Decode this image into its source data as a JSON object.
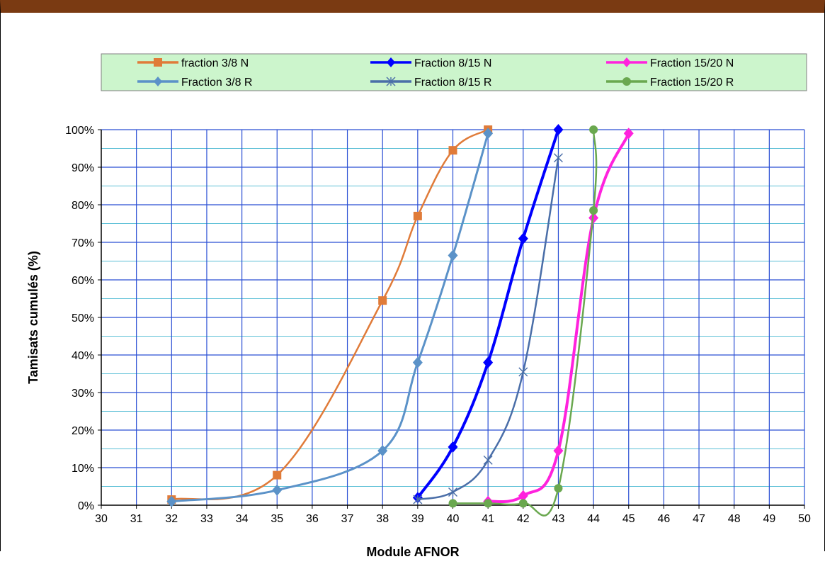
{
  "chart_data": {
    "type": "line",
    "title": "",
    "xlabel": "Module AFNOR",
    "ylabel": "Tamisats cumulés (%)",
    "xlim": [
      30,
      50
    ],
    "ylim": [
      0,
      100
    ],
    "x_ticks": [
      "30",
      "31",
      "32",
      "33",
      "34",
      "35",
      "36",
      "37",
      "38",
      "39",
      "40",
      "41",
      "42",
      "43",
      "44",
      "45",
      "46",
      "47",
      "48",
      "49",
      "50"
    ],
    "y_ticks": [
      "0%",
      "10%",
      "20%",
      "30%",
      "40%",
      "50%",
      "60%",
      "70%",
      "80%",
      "90%",
      "100%"
    ],
    "grid": true,
    "legend_position": "top",
    "series": [
      {
        "name": "fraction 3/8 N",
        "color": "#e07b39",
        "marker": "square",
        "x": [
          32,
          35,
          38,
          39,
          40,
          41
        ],
        "y": [
          1.5,
          8,
          54.5,
          77,
          94.5,
          100
        ]
      },
      {
        "name": "Fraction 3/8 R",
        "color": "#5b92c8",
        "marker": "diamond",
        "x": [
          32,
          35,
          38,
          39,
          40,
          41
        ],
        "y": [
          1,
          4,
          14.5,
          38,
          66.5,
          99
        ]
      },
      {
        "name": "Fraction 8/15 N",
        "color": "#0000ff",
        "marker": "diamond",
        "x": [
          39,
          40,
          41,
          42,
          43
        ],
        "y": [
          2,
          15.5,
          38,
          71,
          100
        ]
      },
      {
        "name": "Fraction 8/15 R",
        "color": "#4a6ea8",
        "marker": "star",
        "x": [
          39,
          40,
          41,
          42,
          43
        ],
        "y": [
          1.5,
          3.5,
          12,
          35.5,
          92.5
        ]
      },
      {
        "name": "Fraction 15/20 N",
        "color": "#ff22dd",
        "marker": "diamond",
        "x": [
          41,
          42,
          43,
          44,
          45
        ],
        "y": [
          1,
          2.5,
          14.5,
          76.5,
          99
        ]
      },
      {
        "name": "Fraction 15/20 R",
        "color": "#6aa84f",
        "marker": "circle",
        "x": [
          40,
          41,
          42,
          43,
          44,
          44
        ],
        "y": [
          0.5,
          0.5,
          0.5,
          4.5,
          78.5,
          100
        ]
      }
    ]
  }
}
